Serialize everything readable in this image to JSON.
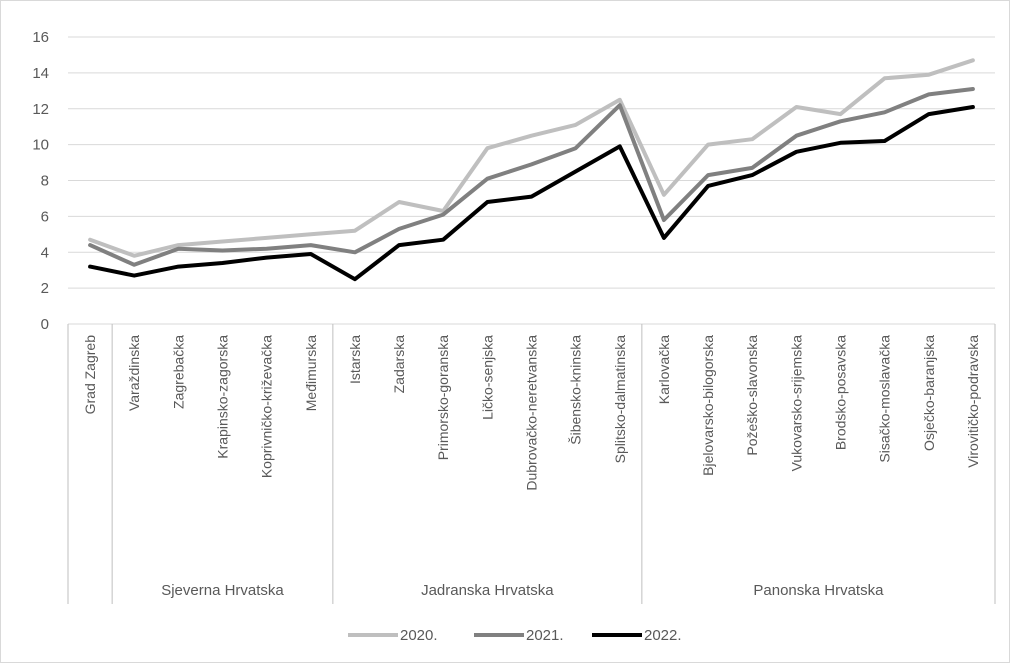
{
  "chart_data": {
    "type": "line",
    "ylim": [
      0,
      16
    ],
    "yticks": [
      "0",
      "2",
      "4",
      "6",
      "8",
      "10",
      "12",
      "14",
      "16"
    ],
    "grid": true,
    "legend_position": "bottom",
    "categories": [
      "Grad Zagreb",
      "Varaždinska",
      "Zagrebačka",
      "Krapinsko-zagorska",
      "Koprivničko-križevačka",
      "Međimurska",
      "Istarska",
      "Zadarska",
      "Primorsko-goranska",
      "Ličko-senjska",
      "Dubrovačko-neretvanska",
      "Šibensko-kninska",
      "Splitsko-dalmatinska",
      "Karlovačka",
      "Bjelovarsko-bilogorska",
      "Požeško-slavonska",
      "Vukovarsko-srijemska",
      "Brodsko-posavska",
      "Sisačko-moslavačka",
      "Osječko-baranjska",
      "Virovitičko-podravska"
    ],
    "groups": [
      {
        "label": "",
        "start": 0,
        "end": 0
      },
      {
        "label": "Sjeverna Hrvatska",
        "start": 1,
        "end": 5
      },
      {
        "label": "Jadranska Hrvatska",
        "start": 6,
        "end": 12
      },
      {
        "label": "Panonska Hrvatska",
        "start": 13,
        "end": 20
      }
    ],
    "series": [
      {
        "name": "2020.",
        "color": "#bfbfbf",
        "values": [
          4.7,
          3.8,
          4.4,
          4.6,
          4.8,
          5.0,
          5.2,
          6.8,
          6.3,
          9.8,
          10.5,
          11.1,
          12.5,
          7.2,
          10.0,
          10.3,
          12.1,
          11.7,
          13.7,
          13.9,
          14.7
        ]
      },
      {
        "name": "2021.",
        "color": "#808080",
        "values": [
          4.4,
          3.3,
          4.2,
          4.1,
          4.2,
          4.4,
          4.0,
          5.3,
          6.1,
          8.1,
          8.9,
          9.8,
          12.2,
          5.8,
          8.3,
          8.7,
          10.5,
          11.3,
          11.8,
          12.8,
          13.1
        ]
      },
      {
        "name": "2022.",
        "color": "#000000",
        "values": [
          3.2,
          2.7,
          3.2,
          3.4,
          3.7,
          3.9,
          2.5,
          4.4,
          4.7,
          6.8,
          7.1,
          8.5,
          9.9,
          4.8,
          7.7,
          8.3,
          9.6,
          10.1,
          10.2,
          11.7,
          12.1
        ]
      }
    ]
  }
}
